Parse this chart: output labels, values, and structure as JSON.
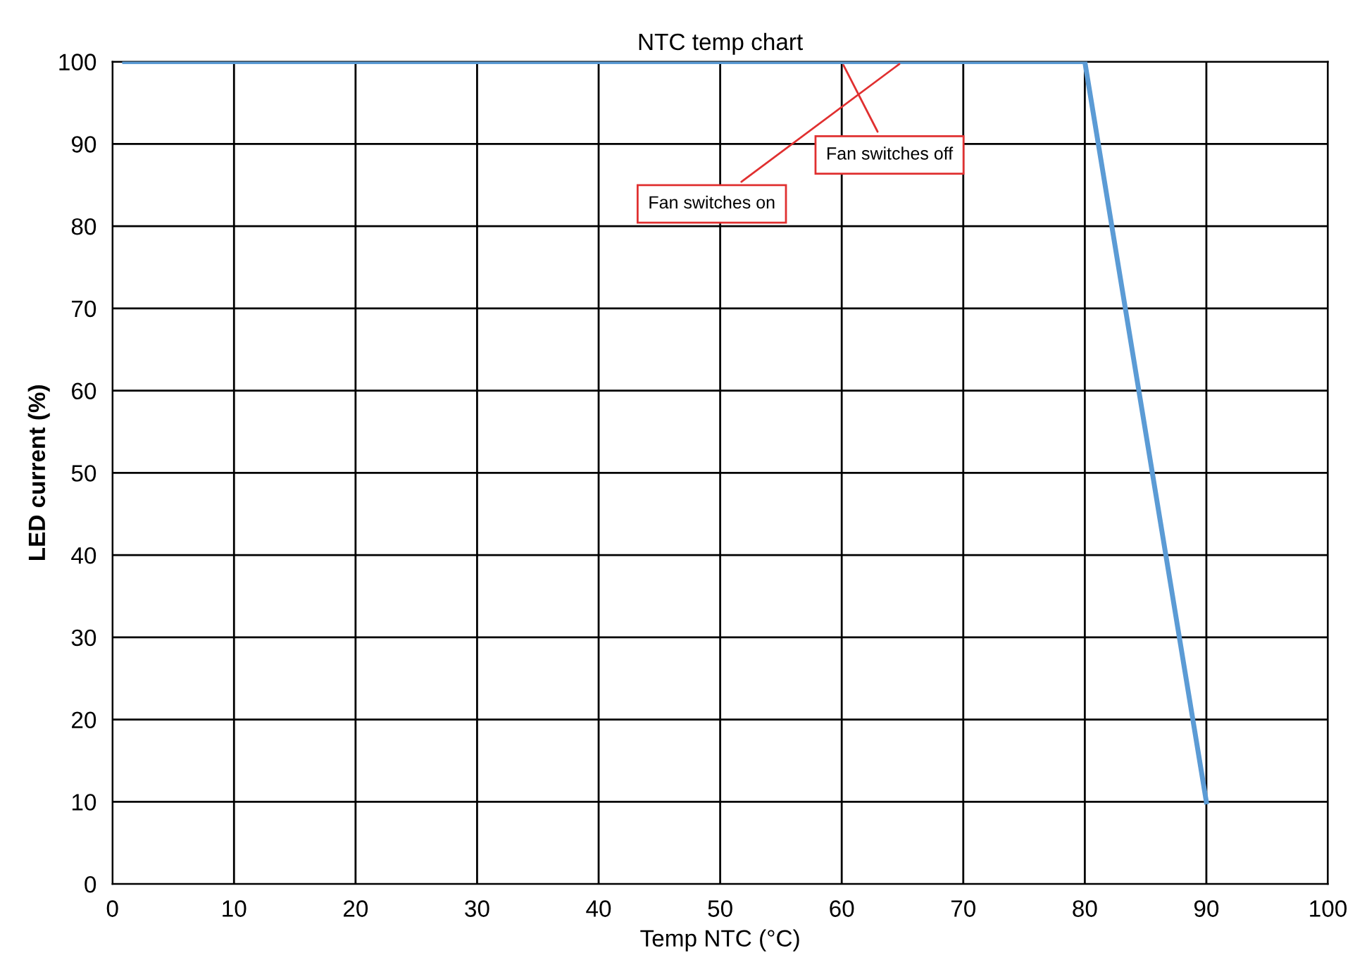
{
  "chart_data": {
    "type": "line",
    "title": "NTC temp chart",
    "xlabel": "Temp NTC (°C)",
    "ylabel": "LED current (%)",
    "series": [
      {
        "color": "#5b9bd5",
        "x": [
          1,
          80,
          90
        ],
        "values": [
          100,
          100,
          10
        ]
      }
    ],
    "xlim": [
      0,
      100
    ],
    "ylim": [
      0,
      100
    ],
    "xticks": [
      0,
      10,
      20,
      30,
      40,
      50,
      60,
      70,
      80,
      90,
      100
    ],
    "yticks": [
      0,
      10,
      20,
      30,
      40,
      50,
      60,
      70,
      80,
      90,
      100
    ],
    "grid": true,
    "marker": "none",
    "line_style": "solid",
    "annotations": [
      {
        "text": "Fan switches on",
        "x": 65,
        "y": 100
      },
      {
        "text": "Fan switches off",
        "x": 60,
        "y": 100
      }
    ]
  }
}
